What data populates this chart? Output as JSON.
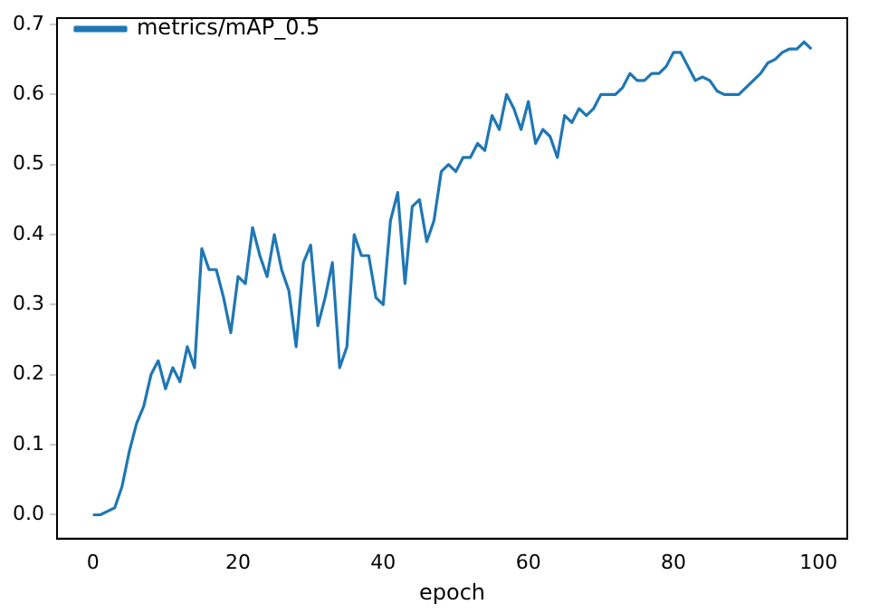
{
  "chart_data": {
    "type": "line",
    "xlabel": "epoch",
    "x": [
      0,
      1,
      2,
      3,
      4,
      5,
      6,
      7,
      8,
      9,
      10,
      11,
      12,
      13,
      14,
      15,
      16,
      17,
      18,
      19,
      20,
      21,
      22,
      23,
      24,
      25,
      26,
      27,
      28,
      29,
      30,
      31,
      32,
      33,
      34,
      35,
      36,
      37,
      38,
      39,
      40,
      41,
      42,
      43,
      44,
      45,
      46,
      47,
      48,
      49,
      50,
      51,
      52,
      53,
      54,
      55,
      56,
      57,
      58,
      59,
      60,
      61,
      62,
      63,
      64,
      65,
      66,
      67,
      68,
      69,
      70,
      71,
      72,
      73,
      74,
      75,
      76,
      77,
      78,
      79,
      80,
      81,
      82,
      83,
      84,
      85,
      86,
      87,
      88,
      89,
      90,
      91,
      92,
      93,
      94,
      95,
      96,
      97,
      98,
      99
    ],
    "series": [
      {
        "name": "metrics/mAP_0.5",
        "color": "#1f77b4",
        "values": [
          0.0,
          0.0,
          0.005,
          0.01,
          0.04,
          0.09,
          0.13,
          0.155,
          0.2,
          0.22,
          0.18,
          0.21,
          0.19,
          0.24,
          0.21,
          0.38,
          0.35,
          0.35,
          0.31,
          0.26,
          0.34,
          0.33,
          0.41,
          0.37,
          0.34,
          0.4,
          0.35,
          0.32,
          0.24,
          0.36,
          0.385,
          0.27,
          0.31,
          0.36,
          0.21,
          0.24,
          0.4,
          0.37,
          0.37,
          0.31,
          0.3,
          0.42,
          0.46,
          0.33,
          0.44,
          0.45,
          0.39,
          0.42,
          0.49,
          0.5,
          0.49,
          0.51,
          0.51,
          0.53,
          0.52,
          0.57,
          0.55,
          0.6,
          0.58,
          0.55,
          0.59,
          0.53,
          0.55,
          0.54,
          0.51,
          0.57,
          0.56,
          0.58,
          0.57,
          0.58,
          0.6,
          0.6,
          0.6,
          0.61,
          0.63,
          0.62,
          0.62,
          0.63,
          0.63,
          0.64,
          0.66,
          0.66,
          0.64,
          0.62,
          0.625,
          0.62,
          0.605,
          0.6,
          0.6,
          0.6,
          0.61,
          0.62,
          0.63,
          0.645,
          0.65,
          0.66,
          0.665,
          0.665,
          0.675,
          0.665
        ]
      }
    ],
    "xlim": [
      -4.95,
      103.95
    ],
    "ylim": [
      -0.034,
      0.709
    ],
    "xticks": [
      0,
      20,
      40,
      60,
      80,
      100
    ],
    "yticks": [
      {
        "value": 0,
        "label": "0.0"
      },
      0.1,
      0.2,
      0.3,
      0.4,
      0.5,
      0.6,
      {
        "value": 0.7,
        "label": "0.7"
      }
    ],
    "grid": false,
    "legend": "top left",
    "marker": "none",
    "line_style": "solid"
  }
}
